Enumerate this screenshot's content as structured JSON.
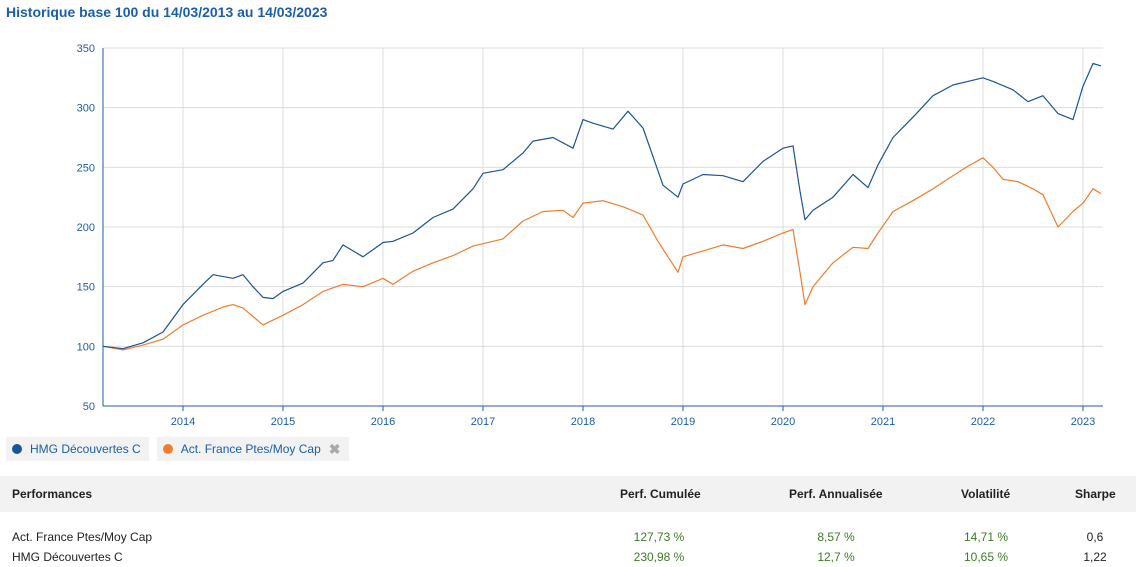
{
  "title": "Historique base 100 du 14/03/2013 au 14/03/2023",
  "legend": {
    "items": [
      {
        "label": "HMG Découvertes C",
        "color": "#1b5497"
      },
      {
        "label": "Act. France Ptes/Moy Cap",
        "color": "#ef7d2d",
        "removable": true
      }
    ],
    "close_icon": "close-icon"
  },
  "chart_data": {
    "type": "line",
    "title": "Historique base 100 du 14/03/2013 au 14/03/2023",
    "xlabel": "",
    "ylabel": "",
    "x_ticks": [
      "2014",
      "2015",
      "2016",
      "2017",
      "2018",
      "2019",
      "2020",
      "2021",
      "2022",
      "2023"
    ],
    "y_ticks": [
      50,
      100,
      150,
      200,
      250,
      300,
      350
    ],
    "xlim": [
      2013.2,
      2023.2
    ],
    "ylim": [
      50,
      350
    ],
    "grid": true,
    "legend_position": "bottom-left",
    "series": [
      {
        "name": "HMG Découvertes C",
        "color": "#1b5497",
        "x": [
          2013.2,
          2013.4,
          2013.6,
          2013.8,
          2014.0,
          2014.2,
          2014.3,
          2014.5,
          2014.6,
          2014.7,
          2014.8,
          2014.9,
          2015.0,
          2015.2,
          2015.4,
          2015.5,
          2015.6,
          2015.8,
          2016.0,
          2016.1,
          2016.3,
          2016.5,
          2016.7,
          2016.9,
          2017.0,
          2017.2,
          2017.4,
          2017.5,
          2017.7,
          2017.9,
          2018.0,
          2018.1,
          2018.3,
          2018.45,
          2018.6,
          2018.8,
          2018.95,
          2019.0,
          2019.2,
          2019.4,
          2019.6,
          2019.8,
          2020.0,
          2020.1,
          2020.17,
          2020.22,
          2020.3,
          2020.5,
          2020.7,
          2020.85,
          2020.95,
          2021.1,
          2021.3,
          2021.5,
          2021.7,
          2021.9,
          2022.0,
          2022.1,
          2022.3,
          2022.45,
          2022.6,
          2022.75,
          2022.9,
          2023.0,
          2023.1,
          2023.18
        ],
        "y": [
          100,
          98,
          103,
          112,
          135,
          152,
          160,
          157,
          160,
          150,
          141,
          140,
          146,
          153,
          170,
          172,
          185,
          175,
          187,
          188,
          195,
          208,
          215,
          232,
          245,
          248,
          262,
          272,
          275,
          266,
          290,
          287,
          282,
          297,
          283,
          235,
          225,
          236,
          244,
          243,
          238,
          255,
          266,
          268,
          230,
          206,
          214,
          225,
          244,
          233,
          252,
          275,
          292,
          310,
          319,
          323,
          325,
          322,
          315,
          305,
          310,
          295,
          290,
          318,
          337,
          335
        ]
      },
      {
        "name": "Act. France Ptes/Moy Cap",
        "color": "#ef7d2d",
        "x": [
          2013.2,
          2013.4,
          2013.6,
          2013.8,
          2014.0,
          2014.2,
          2014.4,
          2014.5,
          2014.6,
          2014.8,
          2014.9,
          2015.0,
          2015.2,
          2015.4,
          2015.6,
          2015.8,
          2016.0,
          2016.1,
          2016.3,
          2016.5,
          2016.7,
          2016.9,
          2017.0,
          2017.2,
          2017.4,
          2017.6,
          2017.8,
          2017.9,
          2018.0,
          2018.2,
          2018.4,
          2018.6,
          2018.75,
          2018.95,
          2019.0,
          2019.2,
          2019.4,
          2019.6,
          2019.8,
          2020.0,
          2020.1,
          2020.17,
          2020.22,
          2020.3,
          2020.5,
          2020.7,
          2020.85,
          2020.95,
          2021.1,
          2021.3,
          2021.5,
          2021.7,
          2021.85,
          2022.0,
          2022.1,
          2022.2,
          2022.35,
          2022.5,
          2022.6,
          2022.75,
          2022.9,
          2023.0,
          2023.1,
          2023.18
        ],
        "y": [
          100,
          97,
          101,
          106,
          118,
          126,
          133,
          135,
          132,
          118,
          122,
          126,
          135,
          146,
          152,
          150,
          157,
          152,
          163,
          170,
          176,
          184,
          186,
          190,
          205,
          213,
          214,
          208,
          220,
          222,
          217,
          210,
          188,
          162,
          175,
          180,
          185,
          182,
          188,
          195,
          198,
          162,
          135,
          150,
          170,
          183,
          182,
          195,
          213,
          222,
          232,
          243,
          251,
          258,
          250,
          240,
          238,
          232,
          227,
          200,
          213,
          220,
          232,
          228
        ]
      }
    ]
  },
  "performance": {
    "headers": {
      "name": "Performances",
      "cumulative": "Perf. Cumulée",
      "annualized": "Perf. Annualisée",
      "volatility": "Volatilité",
      "sharpe": "Sharpe"
    },
    "rows": [
      {
        "name": "Act. France Ptes/Moy Cap",
        "cumulative": "127,73 %",
        "annualized": "8,57 %",
        "volatility": "14,71 %",
        "sharpe": "0,6"
      },
      {
        "name": "HMG Découvertes C",
        "cumulative": "230,98 %",
        "annualized": "12,7 %",
        "volatility": "10,65 %",
        "sharpe": "1,22"
      }
    ]
  }
}
